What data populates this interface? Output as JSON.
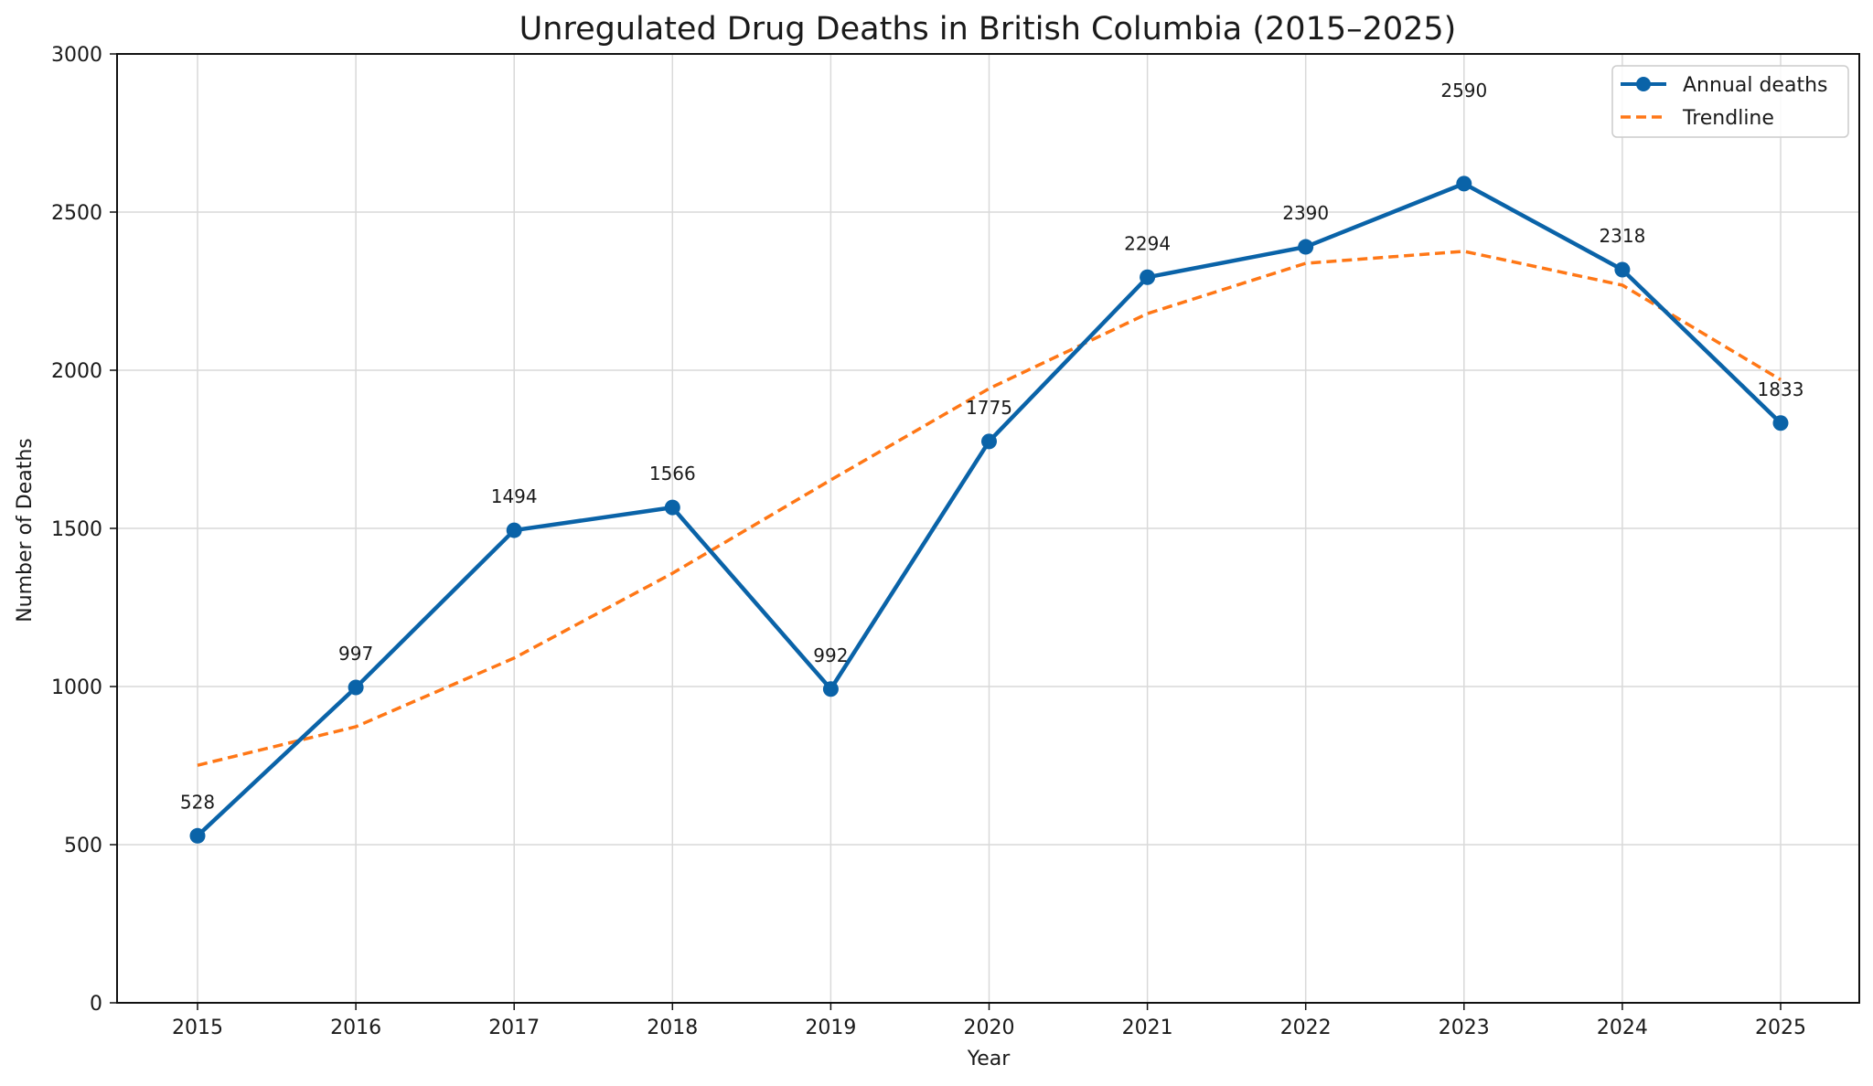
{
  "chart_data": {
    "type": "line",
    "title": "Unregulated Drug Deaths in British Columbia (2015–2025)",
    "xlabel": "Year",
    "ylabel": "Number of Deaths",
    "x": [
      2015,
      2016,
      2017,
      2018,
      2019,
      2020,
      2021,
      2022,
      2023,
      2024,
      2025
    ],
    "x_tick_labels": [
      "2015",
      "2016",
      "2017",
      "2018",
      "2019",
      "2020",
      "2021",
      "2022",
      "2023",
      "2024",
      "2025"
    ],
    "ylim": [
      0,
      3000
    ],
    "y_ticks": [
      0,
      500,
      1000,
      1500,
      2000,
      2500,
      3000
    ],
    "y_tick_labels": [
      "0",
      "500",
      "1000",
      "1500",
      "2000",
      "2500",
      "3000"
    ],
    "grid": true,
    "legend_position": "top-right",
    "series": [
      {
        "name": "Annual deaths",
        "style": "solid-with-markers",
        "color": "#0a63a8",
        "values": [
          528,
          997,
          1494,
          1566,
          992,
          1775,
          2294,
          2390,
          2590,
          2318,
          1833
        ],
        "data_labels": [
          "528",
          "997",
          "1494",
          "1566",
          "992",
          "1775",
          "2294",
          "2390",
          "2590",
          "2318",
          "1833"
        ]
      },
      {
        "name": "Trendline",
        "style": "dashed",
        "color": "#ff7716",
        "values": [
          751,
          873,
          1090,
          1358,
          1653,
          1942,
          2179,
          2338,
          2376,
          2269,
          1970
        ]
      }
    ]
  }
}
